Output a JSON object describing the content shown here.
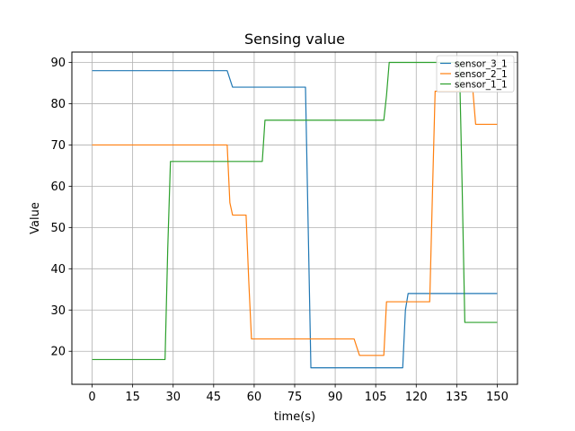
{
  "chart_data": {
    "type": "line",
    "title": "Sensing value",
    "xlabel": "time(s)",
    "ylabel": "Value",
    "xlim": [
      -7.5,
      157.5
    ],
    "ylim": [
      12,
      92.5
    ],
    "xticks": [
      0,
      15,
      30,
      45,
      60,
      75,
      90,
      105,
      120,
      135,
      150
    ],
    "yticks": [
      20,
      30,
      40,
      50,
      60,
      70,
      80,
      90
    ],
    "grid": true,
    "legend_position": "top-right",
    "series": [
      {
        "name": "sensor_3_1",
        "color": "#1f77b4",
        "x": [
          0,
          50,
          51,
          52,
          79,
          80,
          81,
          115,
          116,
          117,
          150
        ],
        "y": [
          88,
          88,
          86,
          84,
          84,
          50,
          16,
          16,
          30,
          34,
          34
        ]
      },
      {
        "name": "sensor_2_1",
        "color": "#ff7f0e",
        "x": [
          0,
          50,
          51,
          52,
          57,
          58,
          59,
          97,
          98,
          99,
          108,
          109,
          125,
          126,
          127,
          141,
          142,
          150
        ],
        "y": [
          70,
          70,
          56,
          53,
          53,
          37,
          23,
          23,
          21,
          19,
          19,
          32,
          32,
          58,
          83,
          83,
          75,
          75
        ]
      },
      {
        "name": "sensor_1_1",
        "color": "#2ca02c",
        "x": [
          0,
          27,
          28,
          29,
          63,
          64,
          108,
          109,
          110,
          136,
          137,
          138,
          150
        ],
        "y": [
          18,
          18,
          45,
          66,
          66,
          76,
          76,
          82,
          90,
          90,
          60,
          27,
          27
        ]
      }
    ]
  }
}
